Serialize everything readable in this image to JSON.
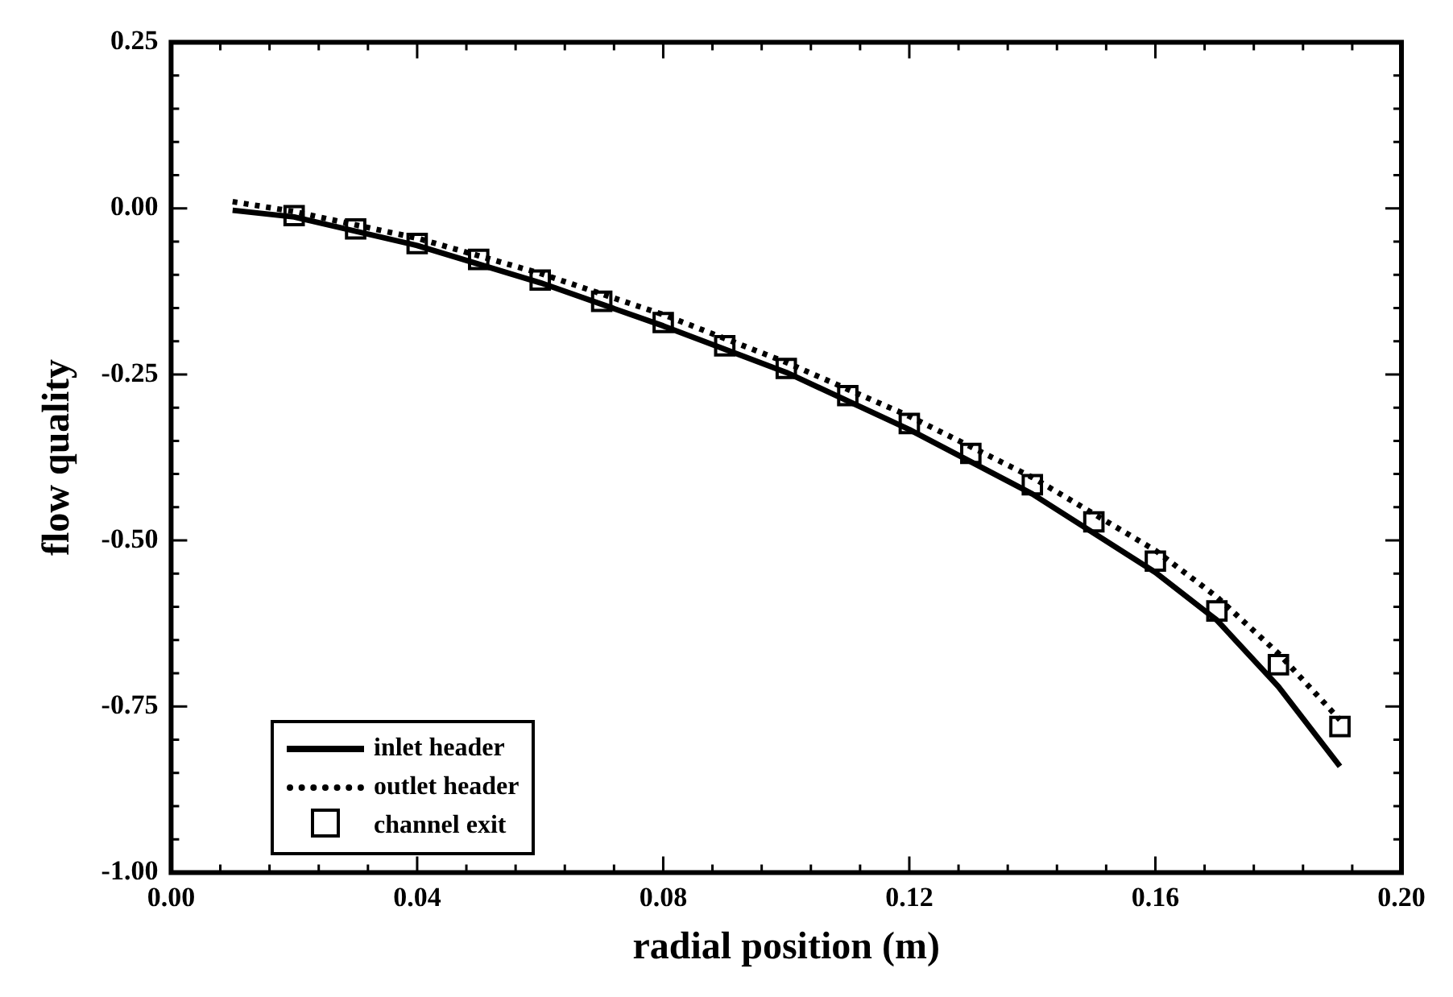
{
  "chart_data": {
    "type": "line",
    "xlabel": "radial position (m)",
    "ylabel": "flow quality",
    "xlim": [
      0,
      0.2
    ],
    "ylim": [
      -1,
      0.25
    ],
    "xticks": [
      {
        "value": 0,
        "label": "0.00"
      },
      {
        "value": 0.008,
        "label": null
      },
      {
        "value": 0.016,
        "label": null
      },
      {
        "value": 0.024,
        "label": null
      },
      {
        "value": 0.032,
        "label": null
      },
      {
        "value": 0.04,
        "label": "0.04"
      },
      {
        "value": 0.048,
        "label": null
      },
      {
        "value": 0.056,
        "label": null
      },
      {
        "value": 0.064,
        "label": null
      },
      {
        "value": 0.072,
        "label": null
      },
      {
        "value": 0.08,
        "label": "0.08"
      },
      {
        "value": 0.088,
        "label": null
      },
      {
        "value": 0.096,
        "label": null
      },
      {
        "value": 0.104,
        "label": null
      },
      {
        "value": 0.112,
        "label": null
      },
      {
        "value": 0.12,
        "label": "0.12"
      },
      {
        "value": 0.128,
        "label": null
      },
      {
        "value": 0.136,
        "label": null
      },
      {
        "value": 0.144,
        "label": null
      },
      {
        "value": 0.152,
        "label": null
      },
      {
        "value": 0.16,
        "label": "0.16"
      },
      {
        "value": 0.168,
        "label": null
      },
      {
        "value": 0.176,
        "label": null
      },
      {
        "value": 0.184,
        "label": null
      },
      {
        "value": 0.192,
        "label": null
      },
      {
        "value": 0.2,
        "label": "0.20"
      }
    ],
    "yticks": [
      {
        "value": -1,
        "label": "-1.00"
      },
      {
        "value": -0.95,
        "label": null
      },
      {
        "value": -0.9,
        "label": null
      },
      {
        "value": -0.85,
        "label": null
      },
      {
        "value": -0.8,
        "label": null
      },
      {
        "value": -0.75,
        "label": "-0.75"
      },
      {
        "value": -0.7,
        "label": null
      },
      {
        "value": -0.65,
        "label": null
      },
      {
        "value": -0.6,
        "label": null
      },
      {
        "value": -0.55,
        "label": null
      },
      {
        "value": -0.5,
        "label": "-0.50"
      },
      {
        "value": -0.45,
        "label": null
      },
      {
        "value": -0.4,
        "label": null
      },
      {
        "value": -0.35,
        "label": null
      },
      {
        "value": -0.3,
        "label": null
      },
      {
        "value": -0.25,
        "label": "-0.25"
      },
      {
        "value": -0.2,
        "label": null
      },
      {
        "value": -0.15,
        "label": null
      },
      {
        "value": -0.1,
        "label": null
      },
      {
        "value": -0.05,
        "label": null
      },
      {
        "value": 0,
        "label": "0.00"
      },
      {
        "value": 0.05,
        "label": null
      },
      {
        "value": 0.1,
        "label": null
      },
      {
        "value": 0.15,
        "label": null
      },
      {
        "value": 0.2,
        "label": null
      },
      {
        "value": 0.25,
        "label": "0.25"
      }
    ],
    "grid": false,
    "legend": "bottom left",
    "series": [
      {
        "name": "inlet header",
        "line_style": "solid",
        "color": "#000000",
        "x": [
          0.01,
          0.02,
          0.04,
          0.06,
          0.08,
          0.1,
          0.12,
          0.14,
          0.16,
          0.17,
          0.18,
          0.19
        ],
        "values": [
          -0.003,
          -0.013,
          -0.056,
          -0.112,
          -0.177,
          -0.247,
          -0.333,
          -0.43,
          -0.548,
          -0.62,
          -0.72,
          -0.84
        ]
      },
      {
        "name": "outlet header",
        "line_style": "dotted",
        "color": "#000000",
        "x": [
          0.01,
          0.02,
          0.04,
          0.06,
          0.08,
          0.1,
          0.12,
          0.14,
          0.16,
          0.17,
          0.18,
          0.19
        ],
        "values": [
          0.01,
          -0.005,
          -0.045,
          -0.098,
          -0.16,
          -0.232,
          -0.313,
          -0.405,
          -0.515,
          -0.585,
          -0.67,
          -0.77
        ]
      },
      {
        "name": "channel exit",
        "type": "scatter",
        "marker": "square",
        "color": "#000000",
        "x": [
          0.02,
          0.03,
          0.04,
          0.05,
          0.06,
          0.07,
          0.08,
          0.09,
          0.1,
          0.11,
          0.12,
          0.13,
          0.14,
          0.15,
          0.16,
          0.17,
          0.18,
          0.19
        ],
        "values": [
          -0.011,
          -0.031,
          -0.053,
          -0.077,
          -0.108,
          -0.14,
          -0.172,
          -0.207,
          -0.241,
          -0.282,
          -0.324,
          -0.369,
          -0.416,
          -0.472,
          -0.531,
          -0.606,
          -0.687,
          -0.78
        ]
      }
    ]
  }
}
